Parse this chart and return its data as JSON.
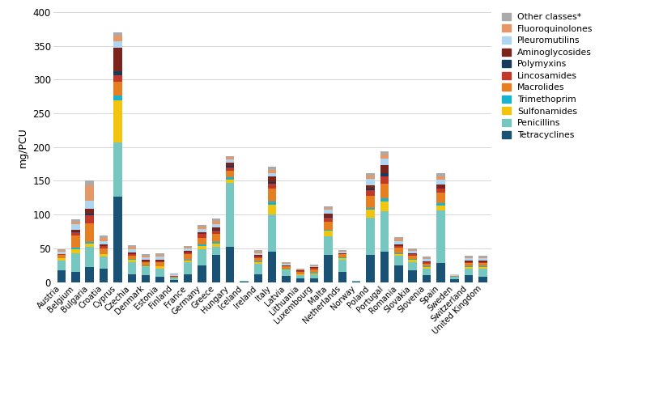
{
  "countries": [
    "Austria",
    "Belgium",
    "Bulgaria",
    "Croatia",
    "Cyprus",
    "Czechia",
    "Denmark",
    "Estonia",
    "Finland",
    "France",
    "Germany",
    "Greece",
    "Hungary",
    "Iceland",
    "Ireland",
    "Italy",
    "Latvia",
    "Lithuania",
    "Luxembourg",
    "Malta",
    "Netherlands",
    "Norway",
    "Poland",
    "Portugal",
    "Romania",
    "Slovakia",
    "Slovenia",
    "Spain",
    "Sweden",
    "Switzerland",
    "United Kingdom"
  ],
  "classes": [
    "Tetracyclines",
    "Penicillins",
    "Sulfonamides",
    "Trimethoprim",
    "Macrolides",
    "Lincosamides",
    "Polymyxins",
    "Aminoglycosides",
    "Pleuromutilins",
    "Fluoroquinolones",
    "Other classes*"
  ],
  "colors": [
    "#1a5276",
    "#76c7c0",
    "#f1c40f",
    "#1ab2cc",
    "#e67e22",
    "#c0392b",
    "#1a3a5c",
    "#7b241c",
    "#aed6f1",
    "#e59866",
    "#aaaaaa"
  ],
  "data": {
    "Austria": [
      18,
      14,
      3,
      1,
      4,
      1,
      0,
      1,
      3,
      2,
      2
    ],
    "Belgium": [
      15,
      28,
      6,
      2,
      18,
      5,
      1,
      3,
      8,
      4,
      3
    ],
    "Bulgaria": [
      22,
      30,
      5,
      2,
      28,
      12,
      2,
      8,
      12,
      22,
      7
    ],
    "Croatia": [
      20,
      18,
      3,
      1,
      8,
      3,
      0,
      3,
      5,
      5,
      3
    ],
    "Cyprus": [
      127,
      80,
      62,
      8,
      20,
      10,
      5,
      35,
      10,
      8,
      5
    ],
    "Czechia": [
      12,
      18,
      3,
      1,
      5,
      3,
      0,
      2,
      5,
      3,
      3
    ],
    "Denmark": [
      10,
      12,
      2,
      1,
      4,
      2,
      0,
      2,
      4,
      2,
      2
    ],
    "Estonia": [
      8,
      12,
      3,
      1,
      5,
      2,
      0,
      2,
      5,
      2,
      3
    ],
    "Finland": [
      3,
      4,
      0,
      0,
      1,
      1,
      0,
      0,
      2,
      1,
      1
    ],
    "France": [
      12,
      18,
      2,
      1,
      8,
      3,
      0,
      2,
      4,
      2,
      2
    ],
    "Germany": [
      25,
      24,
      5,
      2,
      10,
      5,
      0,
      3,
      5,
      3,
      3
    ],
    "Greece": [
      40,
      12,
      5,
      2,
      12,
      5,
      2,
      3,
      5,
      5,
      3
    ],
    "Hungary": [
      52,
      95,
      5,
      3,
      10,
      5,
      2,
      5,
      5,
      3,
      2
    ],
    "Iceland": [
      1,
      1,
      0,
      0,
      0,
      0,
      0,
      0,
      0,
      0,
      0
    ],
    "Ireland": [
      12,
      15,
      2,
      2,
      5,
      2,
      0,
      2,
      3,
      2,
      2
    ],
    "Italy": [
      45,
      55,
      15,
      5,
      18,
      8,
      2,
      8,
      5,
      5,
      5
    ],
    "Latvia": [
      9,
      8,
      2,
      1,
      3,
      1,
      0,
      1,
      2,
      1,
      1
    ],
    "Lithuania": [
      5,
      5,
      1,
      1,
      3,
      1,
      0,
      1,
      1,
      1,
      1
    ],
    "Luxembourg": [
      5,
      6,
      2,
      1,
      5,
      2,
      0,
      1,
      2,
      1,
      1
    ],
    "Malta": [
      40,
      28,
      8,
      2,
      12,
      5,
      2,
      5,
      5,
      3,
      2
    ],
    "Netherlands": [
      15,
      18,
      2,
      2,
      4,
      1,
      0,
      1,
      2,
      1,
      1
    ],
    "Norway": [
      1,
      1,
      0,
      0,
      0,
      0,
      0,
      0,
      0,
      0,
      0
    ],
    "Poland": [
      40,
      55,
      12,
      3,
      18,
      8,
      2,
      5,
      10,
      5,
      3
    ],
    "Portugal": [
      45,
      60,
      15,
      4,
      22,
      10,
      5,
      12,
      10,
      6,
      5
    ],
    "Romania": [
      25,
      14,
      3,
      1,
      8,
      3,
      0,
      2,
      5,
      3,
      3
    ],
    "Slovakia": [
      18,
      12,
      3,
      1,
      5,
      2,
      0,
      2,
      3,
      2,
      2
    ],
    "Slovenia": [
      10,
      10,
      2,
      1,
      4,
      2,
      0,
      2,
      3,
      2,
      2
    ],
    "Spain": [
      28,
      78,
      8,
      3,
      15,
      6,
      1,
      5,
      8,
      5,
      4
    ],
    "Sweden": [
      4,
      4,
      0,
      0,
      1,
      0,
      0,
      0,
      2,
      0,
      0
    ],
    "Switzerland": [
      10,
      10,
      2,
      1,
      5,
      2,
      0,
      2,
      3,
      2,
      2
    ],
    "United Kingdom": [
      8,
      12,
      2,
      1,
      5,
      2,
      0,
      2,
      3,
      2,
      2
    ]
  },
  "ylim": [
    0,
    400
  ],
  "yticks": [
    0,
    50,
    100,
    150,
    200,
    250,
    300,
    350,
    400
  ],
  "ylabel": "mg/PCU",
  "grid_color": "#d5d5d5"
}
